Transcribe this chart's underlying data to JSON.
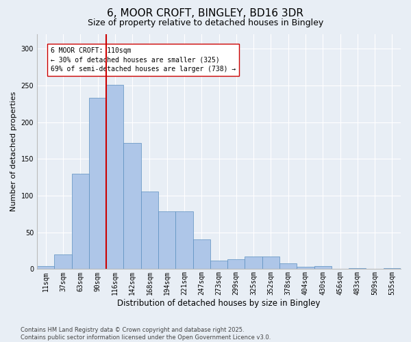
{
  "title": "6, MOOR CROFT, BINGLEY, BD16 3DR",
  "subtitle": "Size of property relative to detached houses in Bingley",
  "xlabel": "Distribution of detached houses by size in Bingley",
  "ylabel": "Number of detached properties",
  "categories": [
    "11sqm",
    "37sqm",
    "63sqm",
    "90sqm",
    "116sqm",
    "142sqm",
    "168sqm",
    "194sqm",
    "221sqm",
    "247sqm",
    "273sqm",
    "299sqm",
    "325sqm",
    "352sqm",
    "378sqm",
    "404sqm",
    "430sqm",
    "456sqm",
    "483sqm",
    "509sqm",
    "535sqm"
  ],
  "bar_heights": [
    4,
    20,
    130,
    233,
    251,
    172,
    106,
    79,
    79,
    40,
    12,
    13,
    17,
    17,
    8,
    3,
    4,
    0,
    1,
    0,
    1
  ],
  "bar_color": "#aec6e8",
  "bar_edge_color": "#5a8fc0",
  "vline_color": "#cc0000",
  "annotation_text": "6 MOOR CROFT: 110sqm\n← 30% of detached houses are smaller (325)\n69% of semi-detached houses are larger (738) →",
  "annotation_box_color": "#ffffff",
  "annotation_box_edge_color": "#cc0000",
  "ylim": [
    0,
    320
  ],
  "yticks": [
    0,
    50,
    100,
    150,
    200,
    250,
    300
  ],
  "background_color": "#e8eef5",
  "plot_bg_color": "#e8eef5",
  "footer": "Contains HM Land Registry data © Crown copyright and database right 2025.\nContains public sector information licensed under the Open Government Licence v3.0.",
  "title_fontsize": 11,
  "subtitle_fontsize": 9,
  "xlabel_fontsize": 8.5,
  "ylabel_fontsize": 8,
  "tick_fontsize": 7,
  "annotation_fontsize": 7,
  "footer_fontsize": 6
}
